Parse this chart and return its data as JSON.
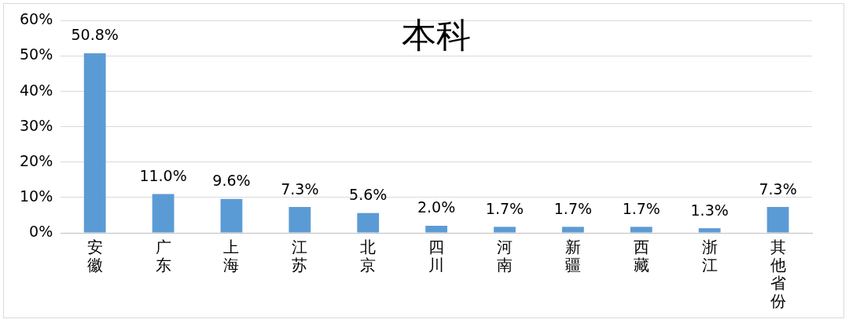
{
  "chart_data": {
    "type": "bar",
    "title": "本科",
    "categories": [
      "安徽",
      "广东",
      "上海",
      "江苏",
      "北京",
      "四川",
      "河南",
      "新疆",
      "西藏",
      "浙江",
      "其他省份"
    ],
    "values": [
      50.8,
      11.0,
      9.6,
      7.3,
      5.6,
      2.0,
      1.7,
      1.7,
      1.7,
      1.3,
      7.3
    ],
    "value_labels": [
      "50.8%",
      "11.0%",
      "9.6%",
      "7.3%",
      "5.6%",
      "2.0%",
      "1.7%",
      "1.7%",
      "1.7%",
      "1.3%",
      "7.3%"
    ],
    "color": "#5b9bd5",
    "ylim": [
      0,
      60
    ],
    "yticks": [
      {
        "value": 0,
        "label": "0%"
      },
      {
        "value": 10,
        "label": "10%"
      },
      {
        "value": 20,
        "label": "20%"
      },
      {
        "value": 30,
        "label": "30%"
      },
      {
        "value": 40,
        "label": "40%"
      },
      {
        "value": 50,
        "label": "50%"
      },
      {
        "value": 60,
        "label": "60%"
      }
    ],
    "grid": "y",
    "legend": false
  }
}
